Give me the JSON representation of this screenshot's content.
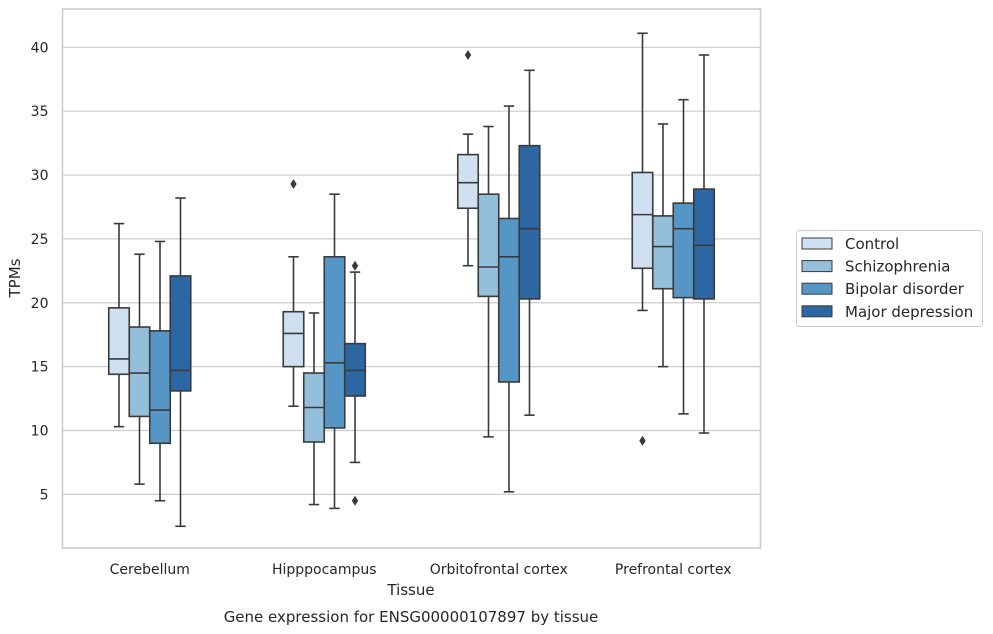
{
  "chart_data": {
    "type": "box",
    "title": "Gene expression for ENSG00000107897 by tissue",
    "xlabel": "Tissue",
    "ylabel": "TPMs",
    "ylim": [
      0.8,
      43.0
    ],
    "yticks": [
      5,
      10,
      15,
      20,
      25,
      30,
      35,
      40
    ],
    "grid": "horizontal",
    "legend_position": "right",
    "categories": [
      "Cerebellum",
      "Hipppocampus",
      "Orbitofrontal cortex",
      "Prefrontal cortex"
    ],
    "series": [
      {
        "name": "Control",
        "color": "#cfe0f1",
        "boxes": [
          {
            "whisker_low": 10.3,
            "q1": 14.4,
            "median": 15.6,
            "q3": 19.6,
            "whisker_high": 26.2,
            "outliers": []
          },
          {
            "whisker_low": 11.9,
            "q1": 15.0,
            "median": 17.6,
            "q3": 19.3,
            "whisker_high": 23.6,
            "outliers": [
              29.3
            ]
          },
          {
            "whisker_low": 22.9,
            "q1": 27.4,
            "median": 29.4,
            "q3": 31.6,
            "whisker_high": 33.2,
            "outliers": [
              39.4
            ]
          },
          {
            "whisker_low": 19.4,
            "q1": 22.7,
            "median": 26.9,
            "q3": 30.2,
            "whisker_high": 41.1,
            "outliers": [
              9.2
            ]
          }
        ]
      },
      {
        "name": "Schizophrenia",
        "color": "#93bfdb",
        "boxes": [
          {
            "whisker_low": 5.8,
            "q1": 11.1,
            "median": 14.5,
            "q3": 18.1,
            "whisker_high": 23.8,
            "outliers": []
          },
          {
            "whisker_low": 4.2,
            "q1": 9.1,
            "median": 11.8,
            "q3": 14.5,
            "whisker_high": 19.2,
            "outliers": []
          },
          {
            "whisker_low": 9.5,
            "q1": 20.5,
            "median": 22.8,
            "q3": 28.5,
            "whisker_high": 33.8,
            "outliers": []
          },
          {
            "whisker_low": 15.0,
            "q1": 21.1,
            "median": 24.4,
            "q3": 26.8,
            "whisker_high": 34.0,
            "outliers": []
          }
        ]
      },
      {
        "name": "Bipolar disorder",
        "color": "#5596c6",
        "boxes": [
          {
            "whisker_low": 4.5,
            "q1": 9.0,
            "median": 11.6,
            "q3": 17.8,
            "whisker_high": 24.8,
            "outliers": []
          },
          {
            "whisker_low": 3.9,
            "q1": 10.2,
            "median": 15.3,
            "q3": 23.6,
            "whisker_high": 28.5,
            "outliers": []
          },
          {
            "whisker_low": 5.2,
            "q1": 13.8,
            "median": 23.6,
            "q3": 26.6,
            "whisker_high": 35.4,
            "outliers": []
          },
          {
            "whisker_low": 11.3,
            "q1": 20.4,
            "median": 25.8,
            "q3": 27.8,
            "whisker_high": 35.9,
            "outliers": []
          }
        ]
      },
      {
        "name": "Major depression",
        "color": "#2c67a3",
        "boxes": [
          {
            "whisker_low": 2.5,
            "q1": 13.1,
            "median": 14.7,
            "q3": 22.1,
            "whisker_high": 28.2,
            "outliers": []
          },
          {
            "whisker_low": 7.5,
            "q1": 12.7,
            "median": 14.7,
            "q3": 16.8,
            "whisker_high": 22.4,
            "outliers": [
              4.5,
              22.9
            ]
          },
          {
            "whisker_low": 11.2,
            "q1": 20.3,
            "median": 25.8,
            "q3": 32.3,
            "whisker_high": 38.2,
            "outliers": []
          },
          {
            "whisker_low": 9.8,
            "q1": 20.3,
            "median": 24.5,
            "q3": 28.9,
            "whisker_high": 39.4,
            "outliers": []
          }
        ]
      }
    ]
  }
}
